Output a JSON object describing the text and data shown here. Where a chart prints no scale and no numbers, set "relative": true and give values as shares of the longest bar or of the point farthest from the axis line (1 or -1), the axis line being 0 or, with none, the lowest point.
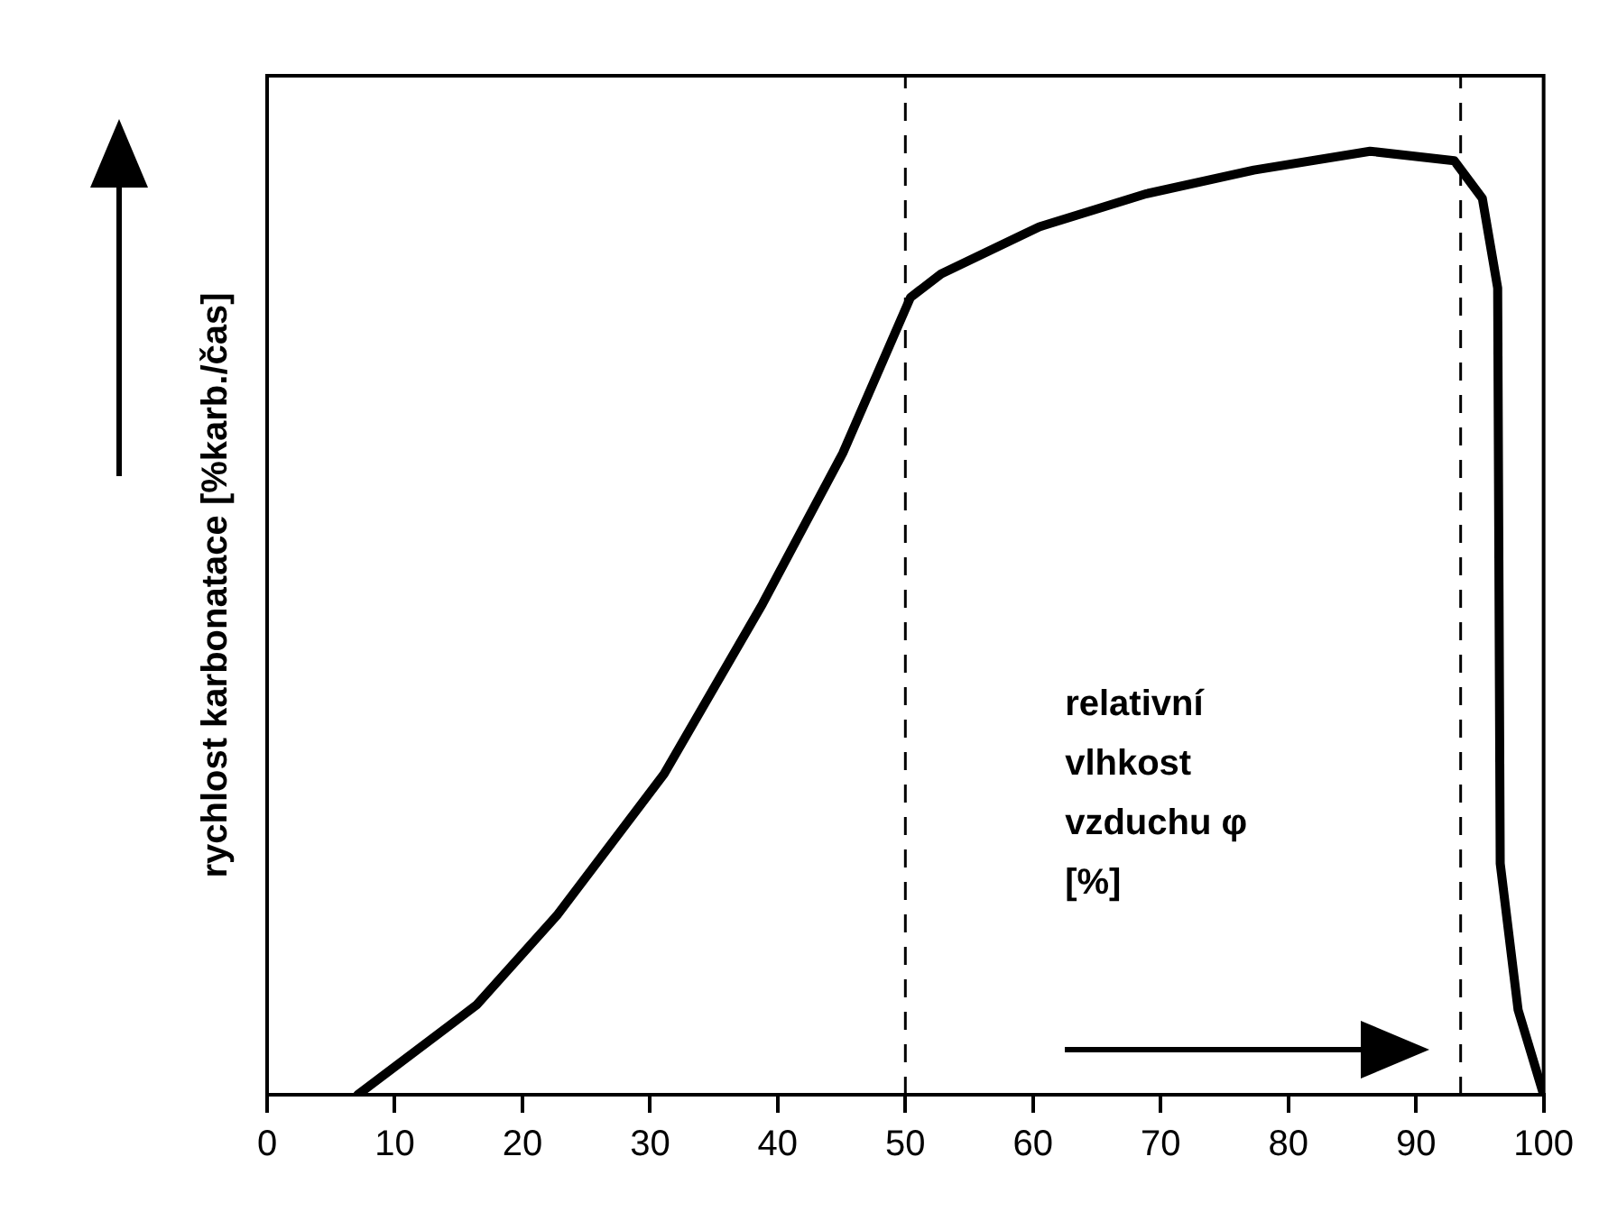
{
  "chart_data": {
    "type": "line",
    "relative": true,
    "xlabel": "relativní vlhkost vzduchu φ [%]",
    "ylabel": "rychlost karbonatace [%karb./čas]",
    "xlim": [
      0,
      100
    ],
    "xticks": [
      0,
      10,
      20,
      30,
      40,
      50,
      60,
      70,
      80,
      90,
      100
    ],
    "grid": false,
    "legend": false,
    "marker": "none",
    "series": [
      {
        "color": "#000000",
        "line_style": "solid",
        "x": [
          7.1,
          16.4,
          22.7,
          31.1,
          38.8,
          45.1,
          50.4,
          52.8,
          60.5,
          68.9,
          77.3,
          86.4,
          93.0,
          95.2,
          96.4,
          96.6,
          98.0,
          100
        ],
        "values": [
          0.0,
          0.095,
          0.19,
          0.34,
          0.52,
          0.68,
          0.845,
          0.87,
          0.92,
          0.955,
          0.98,
          1.0,
          0.99,
          0.95,
          0.855,
          0.245,
          0.09,
          0.0
        ]
      }
    ],
    "ref_lines": [
      {
        "axis": "x",
        "value": 50,
        "color": "#000000",
        "line_style": "dashed"
      },
      {
        "axis": "x",
        "value": 93.5,
        "color": "#000000",
        "line_style": "dashed"
      }
    ]
  }
}
